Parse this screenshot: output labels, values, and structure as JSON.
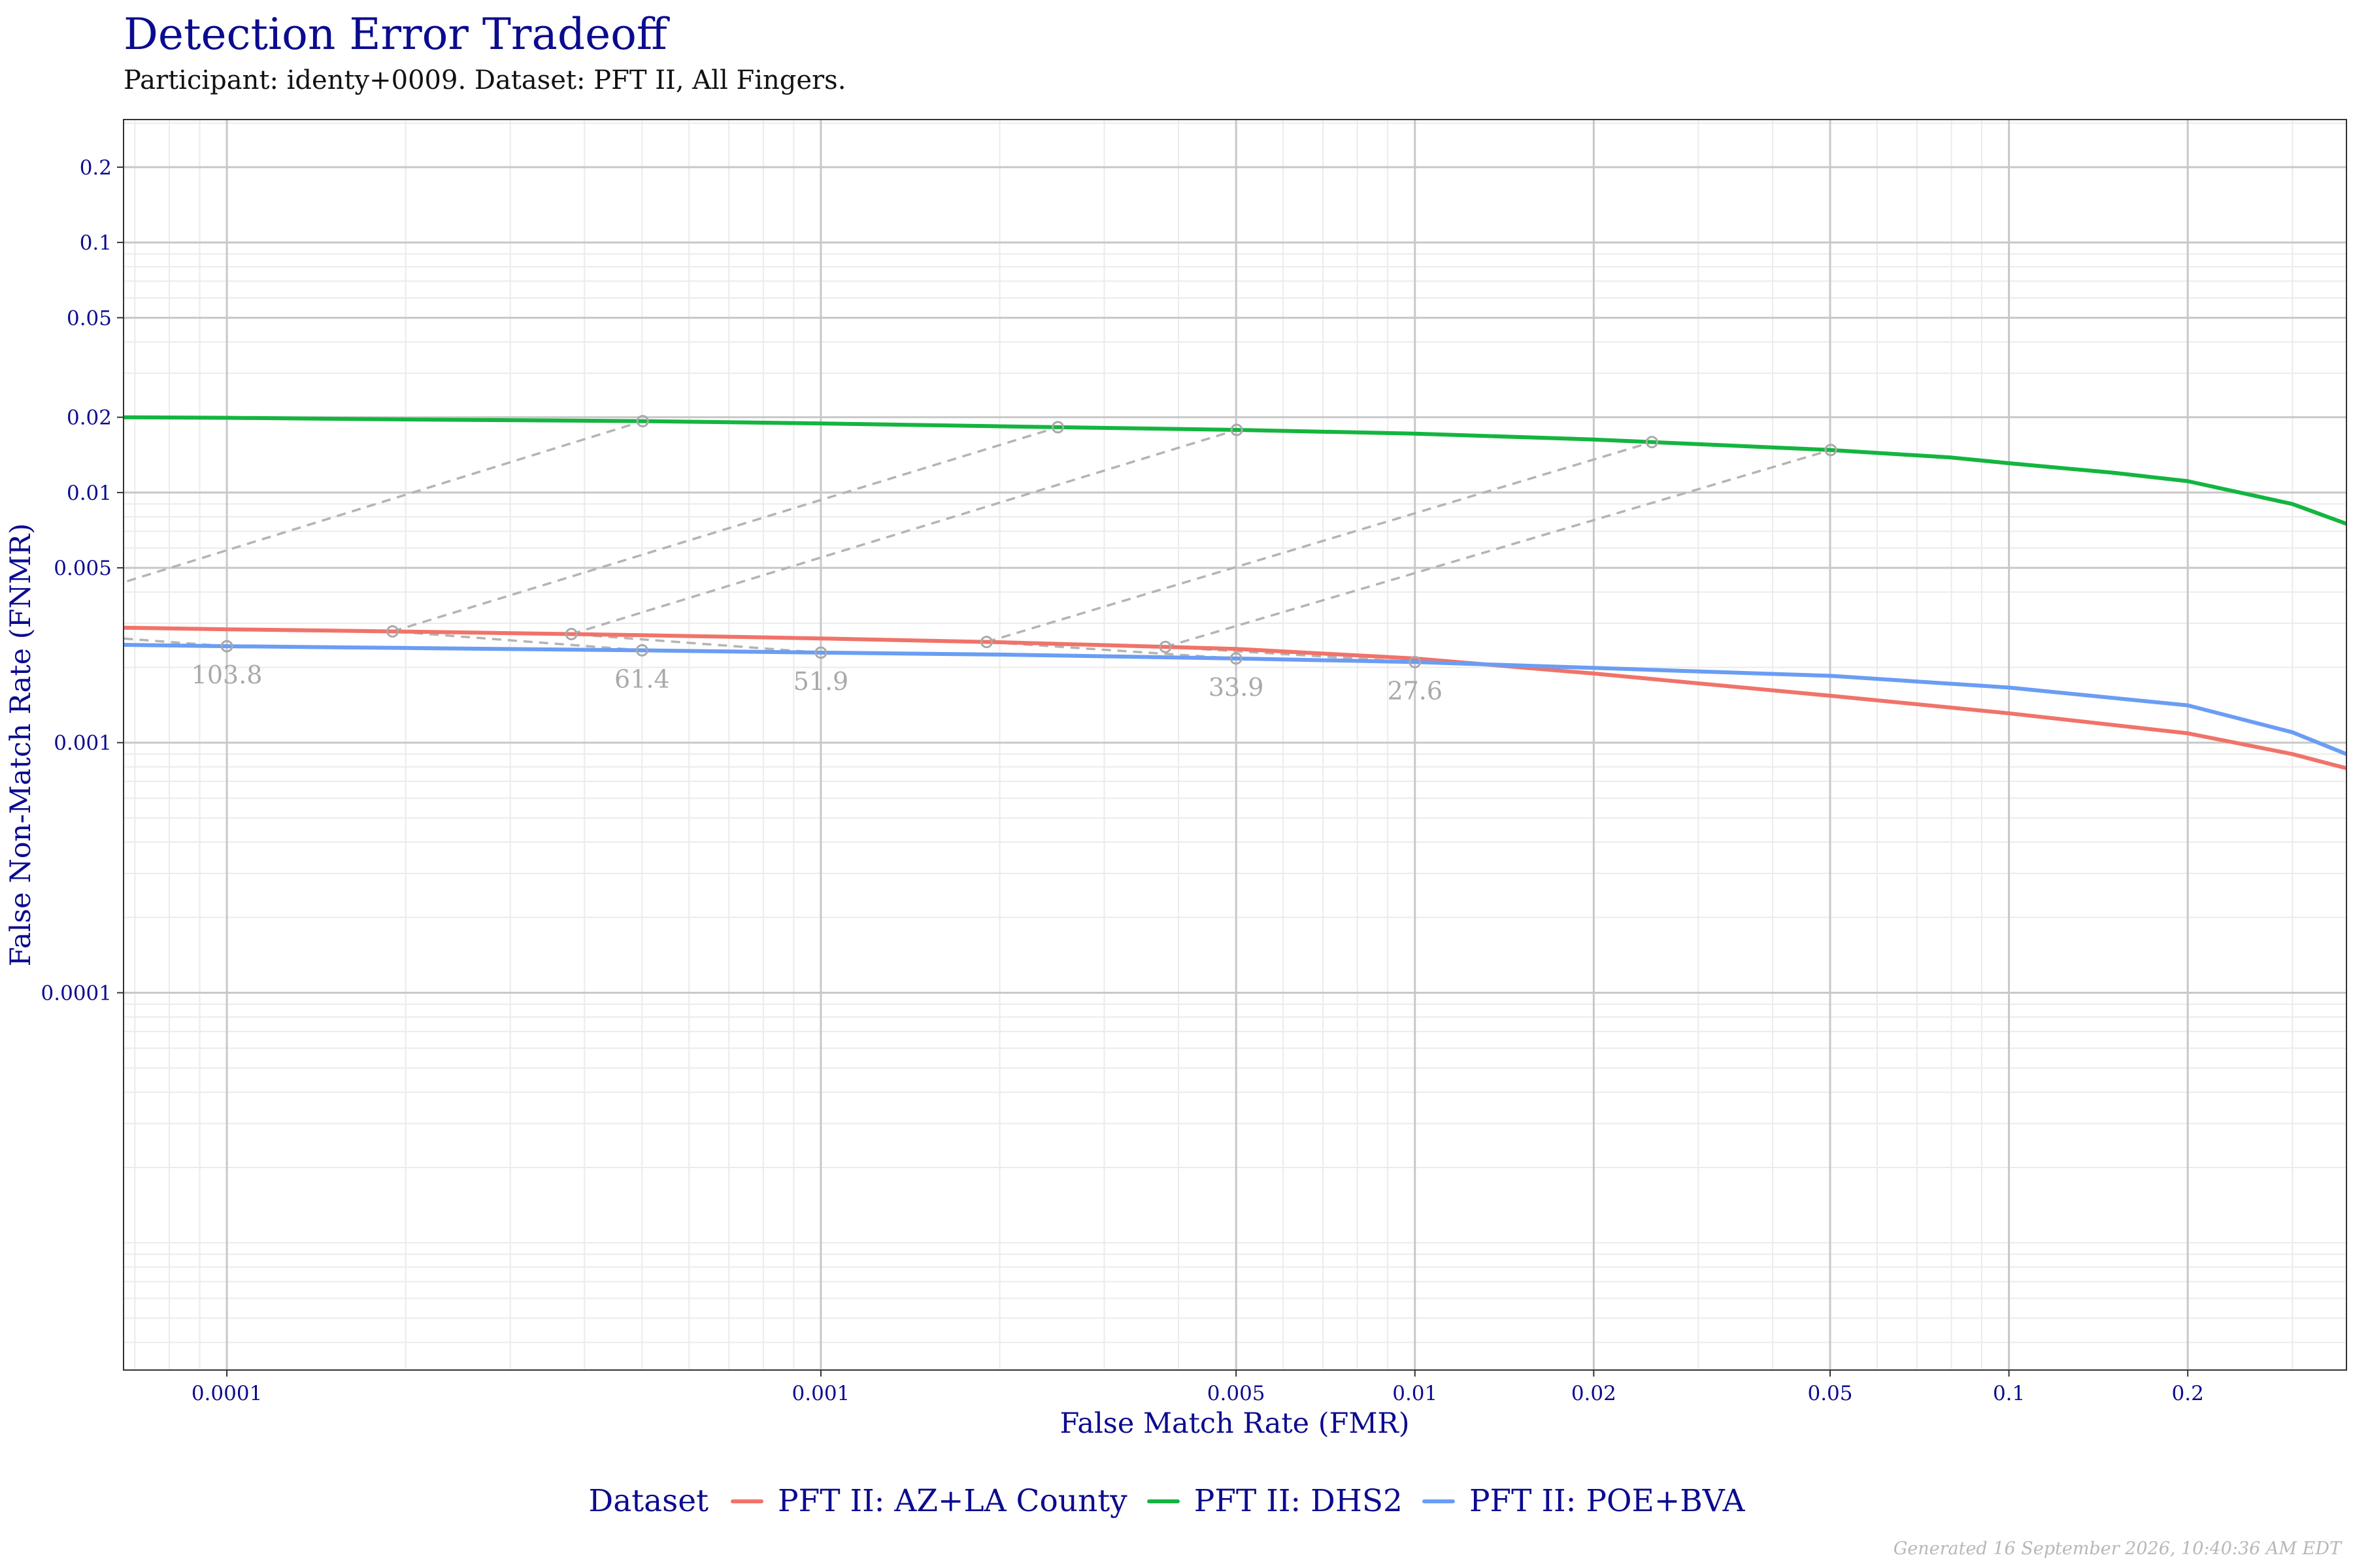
{
  "chart_data": {
    "type": "line",
    "title": "Detection Error Tradeoff",
    "subtitle": "Participant: identy+0009. Dataset: PFT II, All Fingers.",
    "xlabel": "False Match Rate (FMR)",
    "ylabel": "False Non-Match Rate (FNMR)",
    "x_scale": "log",
    "y_scale": "log",
    "xlim": [
      6.7e-05,
      0.37
    ],
    "ylim": [
      3.1e-06,
      0.31
    ],
    "x_ticks": [
      "0.0001",
      "0.001",
      "0.005",
      "0.01",
      "0.02",
      "0.05",
      "0.1",
      "0.2"
    ],
    "y_ticks": [
      "0.0001",
      "0.001",
      "0.005",
      "0.01",
      "0.02",
      "0.05",
      "0.1",
      "0.2"
    ],
    "grid": true,
    "legend": {
      "title": "Dataset",
      "placement": "bottom"
    },
    "series": [
      {
        "name": "PFT II: AZ+LA County",
        "color": "#f0736a",
        "x": [
          6.7e-05,
          0.0001,
          0.0002,
          0.0005,
          0.001,
          0.002,
          0.005,
          0.01,
          0.02,
          0.05,
          0.1,
          0.2,
          0.3,
          0.37
        ],
        "y": [
          0.00288,
          0.00284,
          0.00278,
          0.00269,
          0.00261,
          0.00252,
          0.00237,
          0.00217,
          0.00189,
          0.00154,
          0.00131,
          0.00109,
          0.0009,
          0.00079
        ]
      },
      {
        "name": "PFT II: DHS2",
        "color": "#14b53f",
        "x": [
          6.7e-05,
          0.0001,
          0.0002,
          0.0005,
          0.001,
          0.002,
          0.005,
          0.01,
          0.02,
          0.05,
          0.08,
          0.1,
          0.15,
          0.2,
          0.3,
          0.37
        ],
        "y": [
          0.02,
          0.0199,
          0.0196,
          0.0193,
          0.0189,
          0.0184,
          0.0178,
          0.0172,
          0.0163,
          0.0148,
          0.0138,
          0.0131,
          0.012,
          0.0111,
          0.009,
          0.0075
        ]
      },
      {
        "name": "PFT II: POE+BVA",
        "color": "#6a9df4",
        "x": [
          6.7e-05,
          0.0001,
          0.0002,
          0.0005,
          0.001,
          0.002,
          0.005,
          0.01,
          0.02,
          0.05,
          0.1,
          0.2,
          0.3,
          0.37
        ],
        "y": [
          0.00246,
          0.00243,
          0.00239,
          0.00234,
          0.00229,
          0.00225,
          0.00217,
          0.0021,
          0.00199,
          0.00185,
          0.00166,
          0.00141,
          0.0011,
          0.0009
        ]
      }
    ],
    "threshold_annotations": [
      {
        "label": "103.8",
        "fmr": 0.0001
      },
      {
        "label": "61.4",
        "fmr": 0.0005
      },
      {
        "label": "51.9",
        "fmr": 0.001
      },
      {
        "label": "33.9",
        "fmr": 0.005
      },
      {
        "label": "27.6",
        "fmr": 0.01
      }
    ]
  },
  "footer": {
    "generated": "Generated 16 September 2026, 10:40:36 AM EDT"
  }
}
